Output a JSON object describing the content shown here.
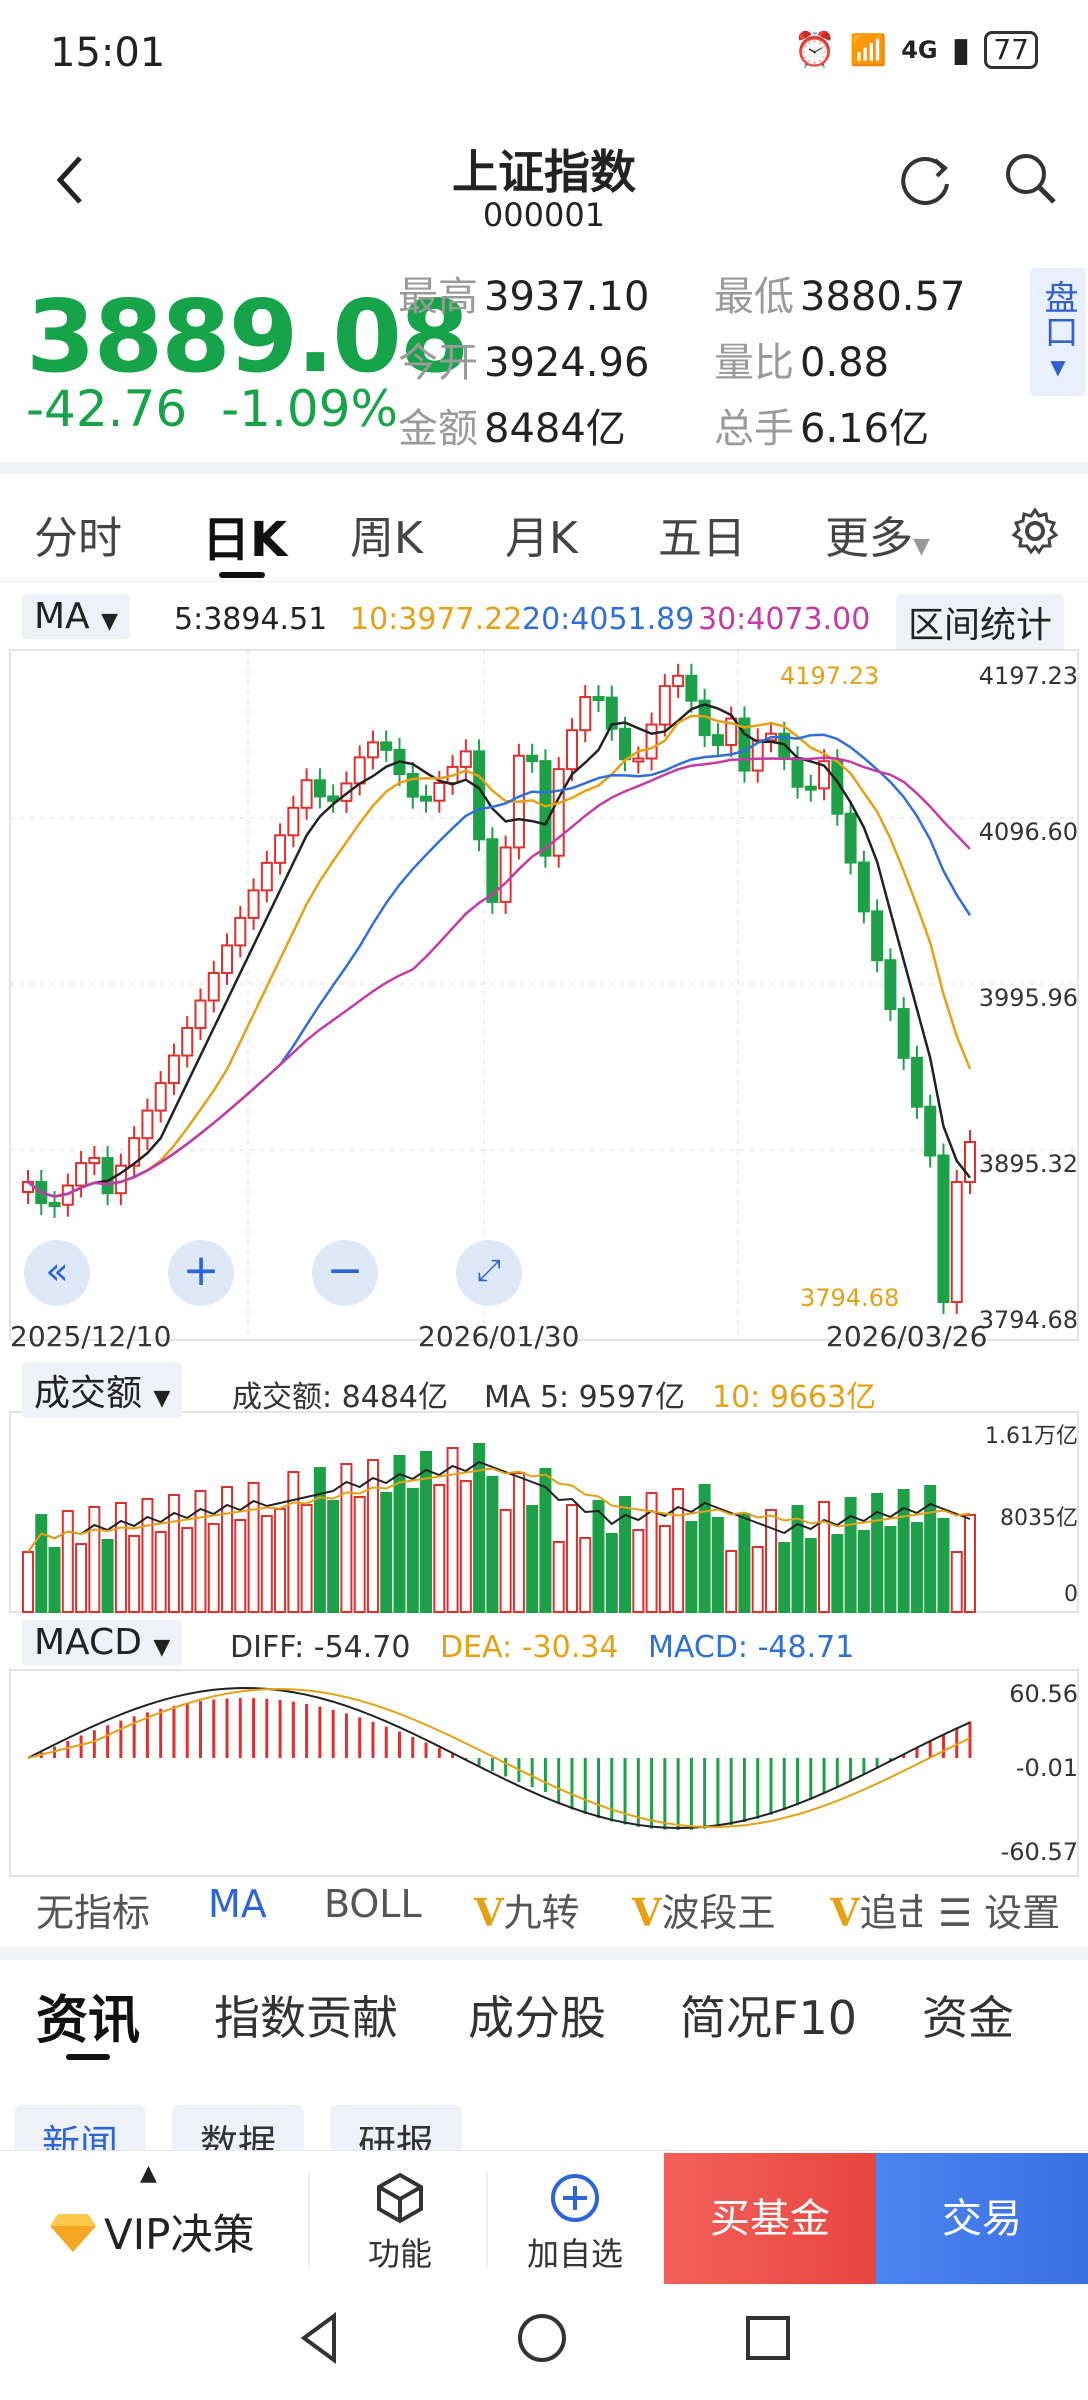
{
  "status": {
    "time": "15:01",
    "battery": "77",
    "signal": "4G",
    "wifi": "6"
  },
  "header": {
    "title": "上证指数",
    "code": "000001"
  },
  "quote": {
    "price": "3889.08",
    "change": "-42.76",
    "change_pct": "-1.09%",
    "high_label": "最高",
    "high": "3937.10",
    "low_label": "最低",
    "low": "3880.57",
    "open_label": "今开",
    "open": "3924.96",
    "vol_ratio_label": "量比",
    "vol_ratio": "0.88",
    "amount_label": "金额",
    "amount": "8484亿",
    "volume_label": "总手",
    "volume": "6.16亿",
    "pankou": "盘口"
  },
  "tabs": [
    "分时",
    "日K",
    "周K",
    "月K",
    "五日",
    "更多"
  ],
  "ma_legend": {
    "selector": "MA",
    "ma5": "5:3894.51",
    "ma10": "10:3977.22",
    "ma20": "20:4051.89",
    "ma30": "30:4073.00",
    "range_stats": "区间统计"
  },
  "price_axis": [
    "4197.23",
    "4096.60",
    "3995.96",
    "3895.32",
    "3794.68"
  ],
  "dates": [
    "2025/12/10",
    "2026/01/30",
    "2026/03/26"
  ],
  "annotations": {
    "high": "4197.23",
    "low": "3794.68"
  },
  "volume": {
    "selector": "成交额",
    "amount_text": "成交额: 8484亿",
    "ma5_text": "MA 5: 9597亿",
    "ma10_text": "10: 9663亿",
    "axis": [
      "1.61万亿",
      "8035亿",
      "0"
    ]
  },
  "macd": {
    "selector": "MACD",
    "diff_text": "DIFF: -54.70",
    "dea_text": "DEA: -30.34",
    "macd_text": "MACD: -48.71",
    "axis": [
      "60.56",
      "-0.01",
      "-60.57"
    ]
  },
  "indicators": [
    "无指标",
    "MA",
    "BOLL",
    "九转",
    "波段王",
    "追击",
    "设置"
  ],
  "info_tabs": [
    "资讯",
    "指数贡献",
    "成分股",
    "简况F10",
    "资金"
  ],
  "sub_tabs": [
    "新闻",
    "数据",
    "研报"
  ],
  "bottom": {
    "vip": "VIP决策",
    "func": "功能",
    "add": "加自选",
    "buy_fund": "买基金",
    "trade": "交易"
  },
  "colors": {
    "up": "#e02f2f",
    "down": "#1ea048",
    "ma5": "#222222",
    "ma10": "#e5a116",
    "ma20": "#2f6fd6",
    "ma30": "#c43ba5"
  }
}
